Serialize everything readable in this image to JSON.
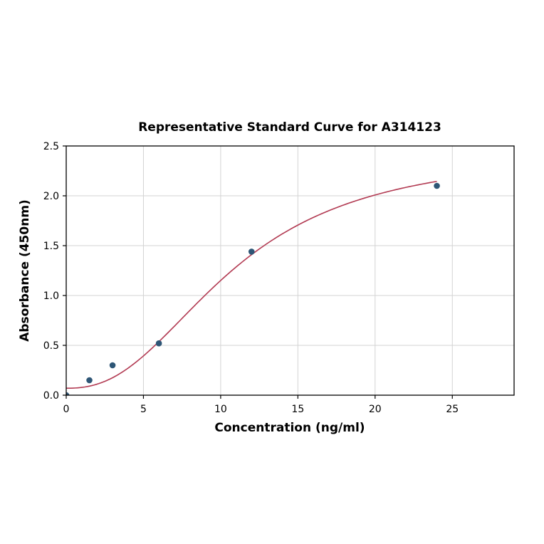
{
  "chart_data": {
    "type": "scatter",
    "title": "Representative Standard Curve for A314123",
    "xlabel": "Concentration (ng/ml)",
    "ylabel": "Absorbance (450nm)",
    "xlim": [
      0,
      29
    ],
    "ylim": [
      0,
      2.5
    ],
    "x_ticks": [
      0,
      5,
      10,
      15,
      20,
      25
    ],
    "y_ticks": [
      0.0,
      0.5,
      1.0,
      1.5,
      2.0,
      2.5
    ],
    "grid": true,
    "legend": "none",
    "points": {
      "x": [
        0,
        1.5,
        3,
        6,
        12,
        24
      ],
      "y": [
        0.0,
        0.15,
        0.3,
        0.52,
        1.44,
        2.1
      ]
    },
    "fit_curve": {
      "model": "4PL",
      "a": 0.07,
      "d": 2.45,
      "c": 10.8,
      "b": 2.4,
      "x_range": [
        0,
        24
      ]
    },
    "point_color": "#2e5676",
    "line_color": "#b23a52",
    "grid_color": "#d3d3d3",
    "axis_color": "#000000",
    "background": "#ffffff"
  }
}
